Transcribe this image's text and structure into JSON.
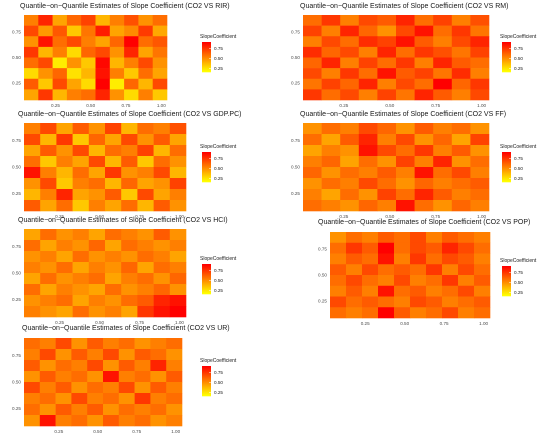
{
  "chart_data": [
    {
      "type": "heatmap",
      "title": "Quantile−on−Quantile Estimates of Slope Coefficient (CO2 VS RIR)",
      "x_ticks": [
        "0.25",
        "0.50",
        "0.75",
        "1.00"
      ],
      "y_ticks": [
        "0.75",
        "0.50",
        "0.25"
      ],
      "legend_title": "SlopeCoefficient",
      "legend_ticks": [
        "0.75",
        "0.50",
        "0.25"
      ],
      "colors": [
        "#ffff00",
        "#ff0000"
      ],
      "values": [
        [
          0.55,
          0.8,
          0.45,
          0.62,
          0.72,
          0.4,
          0.55,
          0.68,
          0.5,
          0.6
        ],
        [
          0.7,
          0.48,
          0.66,
          0.35,
          0.58,
          0.82,
          0.45,
          0.52,
          0.74,
          0.44
        ],
        [
          0.5,
          0.85,
          0.6,
          0.7,
          0.55,
          0.45,
          0.62,
          0.9,
          0.6,
          0.66
        ],
        [
          0.75,
          0.4,
          0.55,
          0.3,
          0.62,
          0.7,
          0.5,
          0.8,
          0.45,
          0.58
        ],
        [
          0.6,
          0.7,
          0.25,
          0.5,
          0.35,
          0.88,
          0.4,
          0.55,
          0.7,
          0.5
        ],
        [
          0.3,
          0.5,
          0.62,
          0.28,
          0.4,
          0.85,
          0.55,
          0.35,
          0.6,
          0.45
        ],
        [
          0.65,
          0.35,
          0.7,
          0.45,
          0.3,
          0.9,
          0.25,
          0.62,
          0.4,
          0.7
        ],
        [
          0.45,
          0.75,
          0.4,
          0.55,
          0.6,
          0.8,
          0.5,
          0.3,
          0.55,
          0.35
        ]
      ]
    },
    {
      "type": "heatmap",
      "title": "Quantile−on−Quantile Estimates of Slope Coefficient (CO2 VS RM)",
      "x_ticks": [
        "0.25",
        "0.50",
        "0.75",
        "1.00"
      ],
      "y_ticks": [
        "0.75",
        "0.50",
        "0.25"
      ],
      "legend_title": "SlopeCoefficient",
      "legend_ticks": [
        "0.75",
        "0.50",
        "0.25"
      ],
      "colors": [
        "#ffff00",
        "#ff0000"
      ],
      "values": [
        [
          0.6,
          0.75,
          0.55,
          0.7,
          0.65,
          0.8,
          0.6,
          0.72,
          0.55,
          0.68
        ],
        [
          0.72,
          0.55,
          0.8,
          0.62,
          0.5,
          0.7,
          0.85,
          0.6,
          0.75,
          0.58
        ],
        [
          0.55,
          0.7,
          0.6,
          0.78,
          0.72,
          0.85,
          0.65,
          0.55,
          0.7,
          0.8
        ],
        [
          0.78,
          0.62,
          0.7,
          0.55,
          0.8,
          0.6,
          0.75,
          0.68,
          0.58,
          0.72
        ],
        [
          0.62,
          0.8,
          0.55,
          0.72,
          0.6,
          0.75,
          0.55,
          0.8,
          0.65,
          0.6
        ],
        [
          0.7,
          0.55,
          0.75,
          0.6,
          0.85,
          0.65,
          0.72,
          0.58,
          0.78,
          0.55
        ],
        [
          0.58,
          0.72,
          0.62,
          0.8,
          0.55,
          0.7,
          0.6,
          0.9,
          0.62,
          0.75
        ],
        [
          0.75,
          0.6,
          0.7,
          0.55,
          0.72,
          0.58,
          0.8,
          0.65,
          0.55,
          0.7
        ]
      ]
    },
    {
      "type": "heatmap",
      "title": "Quantile−on−Quantile Estimates of Slope Coefficient (CO2 VS GDP.PC)",
      "x_ticks": [
        "0.25",
        "0.50",
        "0.75",
        "1.00"
      ],
      "y_ticks": [
        "0.75",
        "0.50",
        "0.25"
      ],
      "legend_title": "SlopeCoefficient",
      "legend_ticks": [
        "0.75",
        "0.50",
        "0.25"
      ],
      "colors": [
        "#ffff00",
        "#ff0000"
      ],
      "values": [
        [
          0.55,
          0.7,
          0.45,
          0.65,
          0.5,
          0.72,
          0.4,
          0.6,
          0.55,
          0.68
        ],
        [
          0.7,
          0.4,
          0.75,
          0.35,
          0.62,
          0.45,
          0.7,
          0.5,
          0.65,
          0.45
        ],
        [
          0.45,
          0.65,
          0.5,
          0.7,
          0.4,
          0.6,
          0.55,
          0.72,
          0.4,
          0.6
        ],
        [
          0.6,
          0.35,
          0.55,
          0.45,
          0.7,
          0.4,
          0.65,
          0.35,
          0.6,
          0.5
        ],
        [
          0.85,
          0.55,
          0.4,
          0.6,
          0.45,
          0.75,
          0.5,
          0.55,
          0.7,
          0.4
        ],
        [
          0.5,
          0.7,
          0.35,
          0.55,
          0.6,
          0.4,
          0.62,
          0.45,
          0.5,
          0.72
        ],
        [
          0.4,
          0.55,
          0.8,
          0.45,
          0.5,
          0.65,
          0.35,
          0.7,
          0.45,
          0.55
        ],
        [
          0.65,
          0.45,
          0.6,
          0.35,
          0.55,
          0.45,
          0.6,
          0.4,
          0.65,
          0.5
        ]
      ]
    },
    {
      "type": "heatmap",
      "title": "Quantile−on−Quantile Estimates of Slope Coefficient (CO2 VS FF)",
      "x_ticks": [
        "0.25",
        "0.50",
        "0.75",
        "1.00"
      ],
      "y_ticks": [
        "0.75",
        "0.50",
        "0.25"
      ],
      "legend_title": "SlopeCoefficient",
      "legend_ticks": [
        "0.75",
        "0.50",
        "0.25"
      ],
      "colors": [
        "#ffff00",
        "#ff0000"
      ],
      "values": [
        [
          0.5,
          0.6,
          0.55,
          0.7,
          0.62,
          0.5,
          0.65,
          0.55,
          0.6,
          0.5
        ],
        [
          0.6,
          0.45,
          0.65,
          0.8,
          0.55,
          0.7,
          0.5,
          0.62,
          0.45,
          0.72
        ],
        [
          0.45,
          0.55,
          0.5,
          0.85,
          0.7,
          0.6,
          0.75,
          0.55,
          0.65,
          0.5
        ],
        [
          0.55,
          0.62,
          0.45,
          0.6,
          0.5,
          0.72,
          0.55,
          0.8,
          0.5,
          0.6
        ],
        [
          0.62,
          0.5,
          0.6,
          0.55,
          0.65,
          0.55,
          0.85,
          0.6,
          0.7,
          0.55
        ],
        [
          0.5,
          0.6,
          0.55,
          0.7,
          0.6,
          0.5,
          0.62,
          0.55,
          0.6,
          0.65
        ],
        [
          0.55,
          0.45,
          0.6,
          0.5,
          0.72,
          0.6,
          0.8,
          0.65,
          0.55,
          0.6
        ],
        [
          0.6,
          0.55,
          0.5,
          0.62,
          0.55,
          0.85,
          0.6,
          0.5,
          0.62,
          0.55
        ]
      ]
    },
    {
      "type": "heatmap",
      "title": "Quantile−on−Quantile Estimates of Slope Coefficient (CO2 VS HCI)",
      "x_ticks": [
        "0.25",
        "0.50",
        "0.75",
        "1.00"
      ],
      "y_ticks": [
        "0.75",
        "0.50",
        "0.25"
      ],
      "legend_title": "SlopeCoefficient",
      "legend_ticks": [
        "0.75",
        "0.50",
        "0.25"
      ],
      "colors": [
        "#ffff00",
        "#ff0000"
      ],
      "values": [
        [
          0.45,
          0.6,
          0.5,
          0.55,
          0.45,
          0.6,
          0.55,
          0.5,
          0.65,
          0.5
        ],
        [
          0.6,
          0.45,
          0.55,
          0.5,
          0.62,
          0.45,
          0.6,
          0.55,
          0.5,
          0.55
        ],
        [
          0.5,
          0.55,
          0.45,
          0.6,
          0.5,
          0.55,
          0.5,
          0.6,
          0.55,
          0.45
        ],
        [
          0.55,
          0.5,
          0.6,
          0.45,
          0.55,
          0.5,
          0.62,
          0.45,
          0.6,
          0.55
        ],
        [
          0.45,
          0.6,
          0.5,
          0.55,
          0.6,
          0.45,
          0.55,
          0.6,
          0.5,
          0.62
        ],
        [
          0.6,
          0.45,
          0.55,
          0.5,
          0.45,
          0.6,
          0.5,
          0.55,
          0.62,
          0.5
        ],
        [
          0.5,
          0.55,
          0.6,
          0.45,
          0.55,
          0.5,
          0.6,
          0.65,
          0.8,
          0.85
        ],
        [
          0.55,
          0.5,
          0.45,
          0.6,
          0.5,
          0.55,
          0.45,
          0.75,
          0.85,
          0.9
        ]
      ]
    },
    {
      "type": "heatmap",
      "title": "Quantile−on−Quantile Estimates of Slope Coefficient (CO2 VS POP)",
      "x_ticks": [
        "0.25",
        "0.50",
        "0.75",
        "1.00"
      ],
      "y_ticks": [
        "0.75",
        "0.50",
        "0.25"
      ],
      "legend_title": "SlopeCoefficient",
      "legend_ticks": [
        "0.75",
        "0.50",
        "0.25"
      ],
      "colors": [
        "#ffff00",
        "#ff0000"
      ],
      "values": [
        [
          0.5,
          0.6,
          0.55,
          0.65,
          0.6,
          0.7,
          0.55,
          0.65,
          0.6,
          0.55
        ],
        [
          0.6,
          0.75,
          0.65,
          0.9,
          0.6,
          0.7,
          0.65,
          0.8,
          0.7,
          0.6
        ],
        [
          0.55,
          0.65,
          0.6,
          0.85,
          0.55,
          0.75,
          0.6,
          0.7,
          0.65,
          0.55
        ],
        [
          0.65,
          0.55,
          0.7,
          0.6,
          0.65,
          0.6,
          0.75,
          0.55,
          0.7,
          0.6
        ],
        [
          0.6,
          0.7,
          0.6,
          0.55,
          0.7,
          0.55,
          0.6,
          0.75,
          0.55,
          0.65
        ],
        [
          0.55,
          0.65,
          0.55,
          0.85,
          0.6,
          0.65,
          0.55,
          0.6,
          0.7,
          0.55
        ],
        [
          0.7,
          0.6,
          0.65,
          0.6,
          0.55,
          0.7,
          0.65,
          0.55,
          0.6,
          0.65
        ],
        [
          0.6,
          0.55,
          0.6,
          0.9,
          0.65,
          0.55,
          0.6,
          0.7,
          0.55,
          0.6
        ]
      ]
    },
    {
      "type": "heatmap",
      "title": "Quantile−on−Quantile Estimates of Slope Coefficient (CO2 VS UR)",
      "x_ticks": [
        "0.25",
        "0.50",
        "0.75",
        "1.00"
      ],
      "y_ticks": [
        "0.75",
        "0.50",
        "0.25"
      ],
      "legend_title": "SlopeCoefficient",
      "legend_ticks": [
        "0.75",
        "0.50",
        "0.25"
      ],
      "colors": [
        "#ffff00",
        "#ff0000"
      ],
      "values": [
        [
          0.6,
          0.55,
          0.7,
          0.5,
          0.65,
          0.55,
          0.6,
          0.5,
          0.55,
          0.6
        ],
        [
          0.55,
          0.7,
          0.5,
          0.65,
          0.55,
          0.7,
          0.5,
          0.65,
          0.6,
          0.5
        ],
        [
          0.65,
          0.5,
          0.6,
          0.55,
          0.7,
          0.5,
          0.65,
          0.55,
          0.8,
          0.55
        ],
        [
          0.5,
          0.65,
          0.55,
          0.6,
          0.5,
          0.85,
          0.55,
          0.6,
          0.5,
          0.65
        ],
        [
          0.7,
          0.55,
          0.65,
          0.5,
          0.6,
          0.55,
          0.7,
          0.5,
          0.65,
          0.55
        ],
        [
          0.55,
          0.6,
          0.5,
          0.7,
          0.55,
          0.6,
          0.5,
          0.75,
          0.55,
          0.6
        ],
        [
          0.6,
          0.5,
          0.65,
          0.55,
          0.65,
          0.5,
          0.6,
          0.55,
          0.6,
          0.5
        ],
        [
          0.5,
          0.85,
          0.55,
          0.6,
          0.5,
          0.65,
          0.55,
          0.6,
          0.5,
          0.55
        ]
      ]
    }
  ]
}
